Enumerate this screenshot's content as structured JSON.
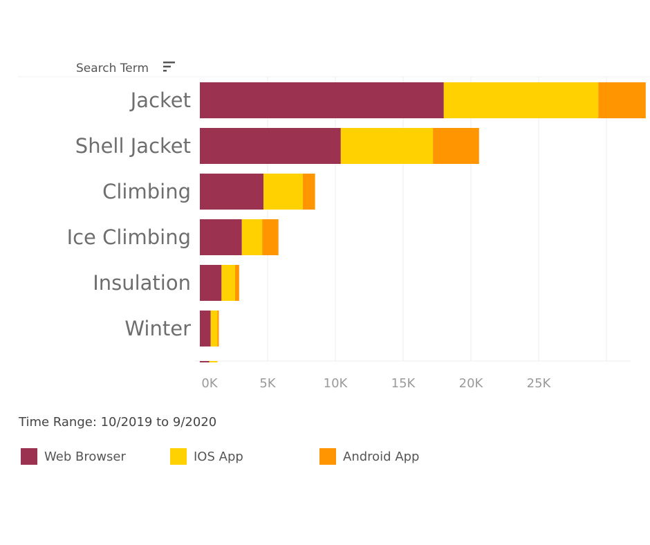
{
  "chart_data": {
    "type": "bar",
    "orientation": "horizontal",
    "stacked": true,
    "header": "Search Term",
    "categories": [
      "Jacket",
      "Shell Jacket",
      "Climbing",
      "Ice Climbing",
      "Insulation",
      "Winter",
      ""
    ],
    "series": [
      {
        "name": "Web Browser",
        "color": "#9b3250",
        "values": [
          18000,
          10400,
          4700,
          3100,
          1600,
          800,
          700
        ]
      },
      {
        "name": "IOS App",
        "color": "#ffd100",
        "values": [
          11400,
          6800,
          2900,
          1500,
          1000,
          500,
          600
        ]
      },
      {
        "name": "Android App",
        "color": "#ff9500",
        "values": [
          3500,
          3400,
          900,
          1200,
          300,
          100,
          0
        ]
      }
    ],
    "x_ticks": [
      "0K",
      "5K",
      "10K",
      "15K",
      "20K",
      "25K"
    ],
    "xlim": [
      0,
      33000
    ],
    "grid": "vertical",
    "legend_position": "bottom"
  },
  "footer": {
    "time_range": "Time Range: 10/2019 to 9/2020"
  }
}
